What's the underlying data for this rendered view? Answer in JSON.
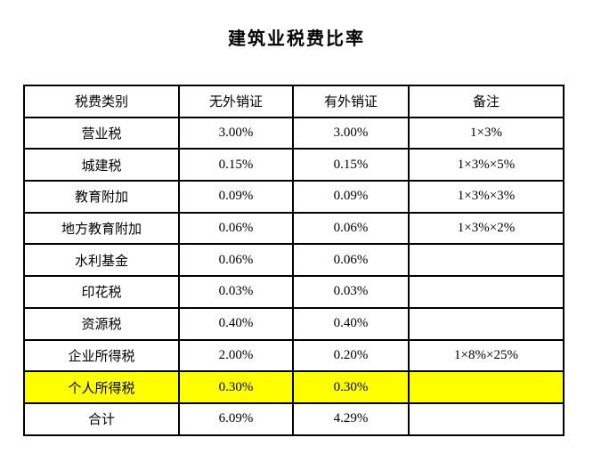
{
  "title": "建筑业税费比率",
  "table": {
    "headers": [
      "税费类别",
      "无外销证",
      "有外销证",
      "备注"
    ],
    "rows": [
      {
        "category": "营业税",
        "no_cert": "3.00%",
        "with_cert": "3.00%",
        "note": "1×3%",
        "highlight": false
      },
      {
        "category": "城建税",
        "no_cert": "0.15%",
        "with_cert": "0.15%",
        "note": "1×3%×5%",
        "highlight": false
      },
      {
        "category": "教育附加",
        "no_cert": "0.09%",
        "with_cert": "0.09%",
        "note": "1×3%×3%",
        "highlight": false
      },
      {
        "category": "地方教育附加",
        "no_cert": "0.06%",
        "with_cert": "0.06%",
        "note": "1×3%×2%",
        "highlight": false
      },
      {
        "category": "水利基金",
        "no_cert": "0.06%",
        "with_cert": "0.06%",
        "note": "",
        "highlight": false
      },
      {
        "category": "印花税",
        "no_cert": "0.03%",
        "with_cert": "0.03%",
        "note": "",
        "highlight": false
      },
      {
        "category": "资源税",
        "no_cert": "0.40%",
        "with_cert": "0.40%",
        "note": "",
        "highlight": false
      },
      {
        "category": "企业所得税",
        "no_cert": "2.00%",
        "with_cert": "0.20%",
        "note": "1×8%×25%",
        "highlight": false
      },
      {
        "category": "个人所得税",
        "no_cert": "0.30%",
        "with_cert": "0.30%",
        "note": "",
        "highlight": true
      },
      {
        "category": "合计",
        "no_cert": "6.09%",
        "with_cert": "4.29%",
        "note": "",
        "highlight": false
      }
    ]
  },
  "colors": {
    "highlight_row": "#FFFF00",
    "border": "#000000",
    "text": "#000000",
    "background": "#FFFFFF"
  }
}
